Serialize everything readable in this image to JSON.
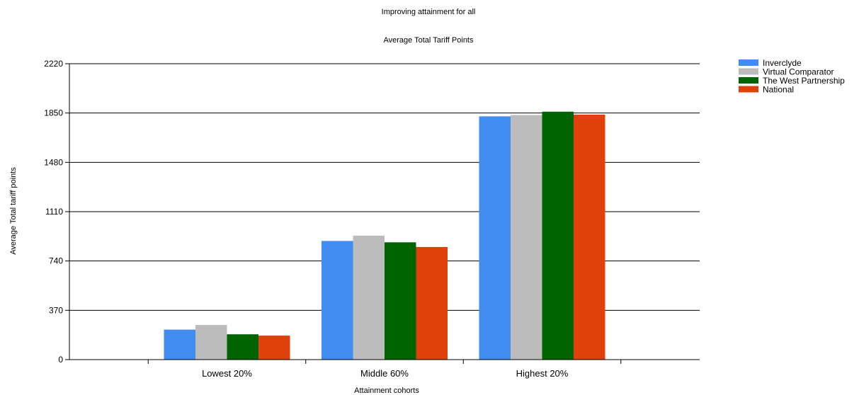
{
  "chart_data": {
    "type": "bar",
    "title": "Improving attainment for all",
    "subtitle": "Average Total Tariff Points",
    "xlabel": "Attainment cohorts",
    "ylabel": "Average Total tariff points",
    "categories": [
      "Lowest 20%",
      "Middle 60%",
      "Highest 20%"
    ],
    "ylim": [
      0,
      2220
    ],
    "yticks": [
      0,
      370,
      740,
      1110,
      1480,
      1850,
      2220
    ],
    "grid": true,
    "legend_position": "top-right",
    "series": [
      {
        "name": "Inverclyde",
        "color": "#418cf0",
        "values": [
          225,
          890,
          1825
        ]
      },
      {
        "name": "Virtual Comparator",
        "color": "#bcbcbc",
        "values": [
          260,
          930,
          1835
        ]
      },
      {
        "name": "The West Partnership",
        "color": "#006400",
        "values": [
          190,
          880,
          1860
        ]
      },
      {
        "name": "National",
        "color": "#e0400a",
        "values": [
          180,
          845,
          1838
        ]
      }
    ]
  }
}
